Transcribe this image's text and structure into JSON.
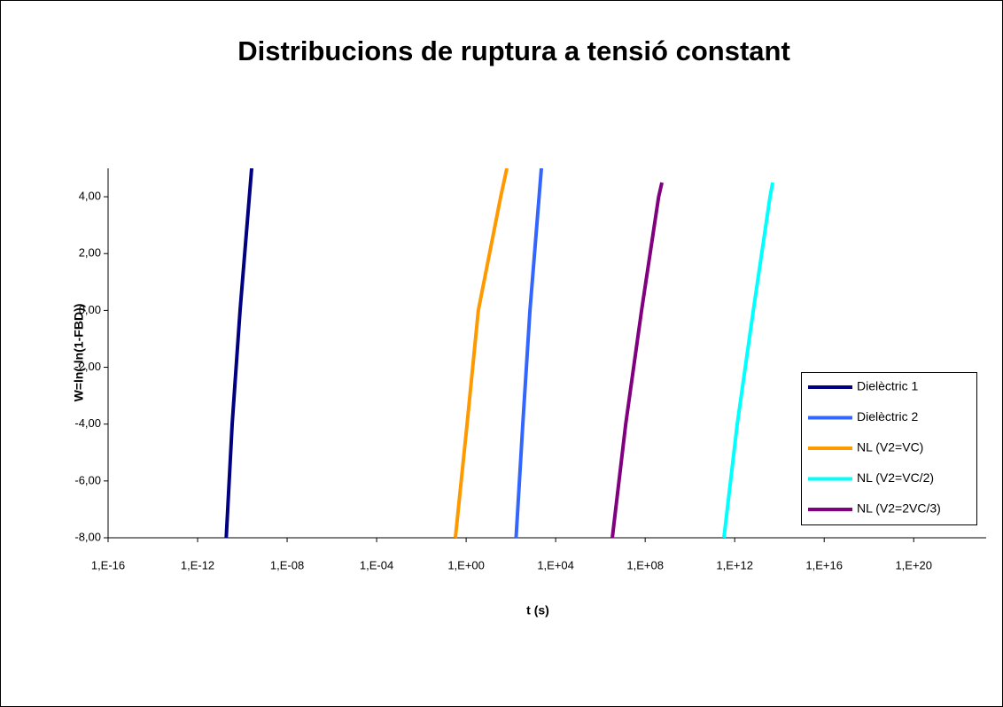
{
  "chart_data": {
    "type": "line",
    "title": "Distribucions de ruptura a tensió constant",
    "x_label": "t (s)",
    "y_label": "W=ln(-ln(1-FBD))",
    "x_log": true,
    "xlim": [
      1e-16,
      1e+23
    ],
    "ylim": [
      -8,
      5
    ],
    "xticks": [
      {
        "value": 1e-16,
        "label": "1,E-16"
      },
      {
        "value": 1e-12,
        "label": "1,E-12"
      },
      {
        "value": 1e-08,
        "label": "1,E-08"
      },
      {
        "value": 0.0001,
        "label": "1,E-04"
      },
      {
        "value": 1,
        "label": "1,E+00"
      },
      {
        "value": 10000.0,
        "label": "1,E+04"
      },
      {
        "value": 100000000.0,
        "label": "1,E+08"
      },
      {
        "value": 1000000000000.0,
        "label": "1,E+12"
      },
      {
        "value": 1e+16,
        "label": "1,E+16"
      },
      {
        "value": 1e+20,
        "label": "1,E+20"
      }
    ],
    "yticks": [
      {
        "value": -8,
        "label": "-8,00"
      },
      {
        "value": -6,
        "label": "-6,00"
      },
      {
        "value": -4,
        "label": "-4,00"
      },
      {
        "value": -2,
        "label": "-2,00"
      },
      {
        "value": 0,
        "label": "0,00"
      },
      {
        "value": 2,
        "label": "2,00"
      },
      {
        "value": 4,
        "label": "4,00"
      }
    ],
    "legend": "right",
    "series": [
      {
        "name": "Dielèctric 1",
        "color": "#000080",
        "x": [
          1.9e-11,
          3.5e-11,
          7.9e-11,
          2.6e-10
        ],
        "values": [
          -8,
          -4,
          0,
          5
        ]
      },
      {
        "name": "Dielèctric 2",
        "color": "#3366ff",
        "x": [
          170,
          340,
          710,
          2300
        ],
        "values": [
          -8,
          -4,
          0,
          5
        ]
      },
      {
        "name": "NL (V2=VC)",
        "color": "#ff9900",
        "x": [
          0.33,
          1.1,
          3.5,
          35,
          66
        ],
        "values": [
          -8,
          -4,
          0,
          4,
          5
        ]
      },
      {
        "name": "NL (V2=VC/2)",
        "color": "#00ffff",
        "x": [
          330000000000.0,
          1300000000000.0,
          6800000000000.0,
          38000000000000.0,
          50000000000000.0
        ],
        "values": [
          -8,
          -4,
          0,
          4,
          4.5
        ]
      },
      {
        "name": "NL (V2=2VC/3)",
        "color": "#800080",
        "x": [
          3400000.0,
          13500000.0,
          69000000.0,
          400000000.0,
          560000000.0
        ],
        "values": [
          -8,
          -4,
          0,
          4,
          4.5
        ]
      }
    ]
  }
}
